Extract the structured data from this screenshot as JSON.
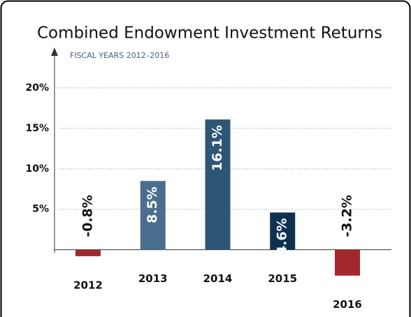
{
  "chart_data": {
    "type": "bar",
    "title": "Combined Endowment Investment Returns",
    "subtitle": "FISCAL YEARS 2012–2016",
    "categories": [
      "2012",
      "2013",
      "2014",
      "2015",
      "2016"
    ],
    "values": [
      -0.8,
      8.5,
      16.1,
      4.6,
      -3.2
    ],
    "value_labels": [
      "-0.8%",
      "8.5%",
      "16.1%",
      "4.6%",
      "-3.2%"
    ],
    "colors": [
      "#a3282e",
      "#4a6e8e",
      "#2d5676",
      "#0e3151",
      "#a3282e"
    ],
    "ylim": [
      -4,
      25
    ],
    "yticks": [
      {
        "value": 5,
        "label": "5%"
      },
      {
        "value": 10,
        "label": "10%"
      },
      {
        "value": 15,
        "label": "15%"
      },
      {
        "value": 20,
        "label": "20%"
      }
    ],
    "grid": true
  }
}
